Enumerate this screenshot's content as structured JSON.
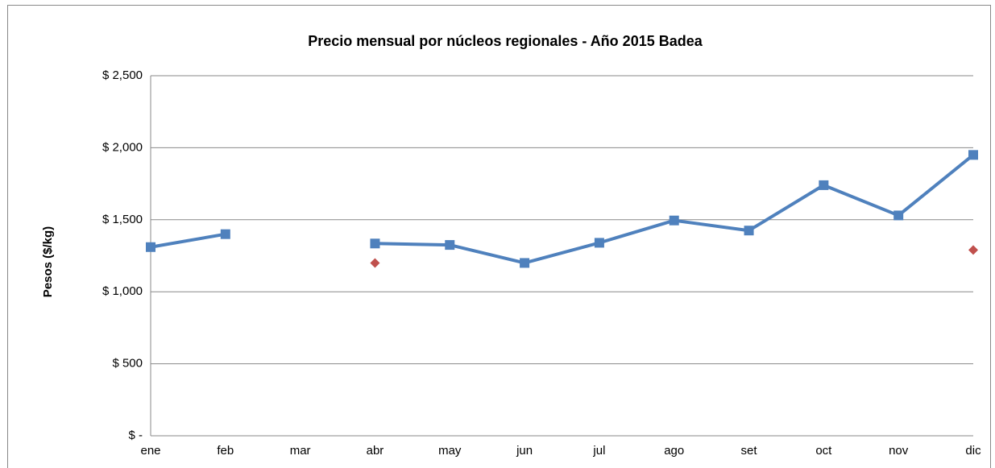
{
  "chart_data": {
    "type": "line",
    "title": "Precio mensual por núcleos regionales -  Año 2015 Badea",
    "y_label": "Pesos ($/kg)",
    "categories": [
      "ene",
      "feb",
      "mar",
      "abr",
      "may",
      "jun",
      "jul",
      "ago",
      "set",
      "oct",
      "nov",
      "dic"
    ],
    "series": [
      {
        "color": "#4f81bd",
        "marker": "square",
        "line": true,
        "values": [
          1310,
          1400,
          null,
          1335,
          1325,
          1200,
          1340,
          1495,
          1425,
          1740,
          1530,
          1950
        ]
      },
      {
        "color": "#c0504d",
        "marker": "diamond",
        "line": false,
        "values": [
          null,
          null,
          null,
          1200,
          null,
          null,
          null,
          null,
          null,
          null,
          null,
          1290
        ]
      }
    ],
    "ylim": [
      0,
      2500
    ],
    "yticks": [
      {
        "value": 0,
        "label": "$ -"
      },
      {
        "value": 500,
        "label": "$ 500"
      },
      {
        "value": 1000,
        "label": "$ 1,000"
      },
      {
        "value": 1500,
        "label": "$ 1,500"
      },
      {
        "value": 2000,
        "label": "$ 2,000"
      },
      {
        "value": 2500,
        "label": "$ 2,500"
      }
    ],
    "grid": true
  }
}
